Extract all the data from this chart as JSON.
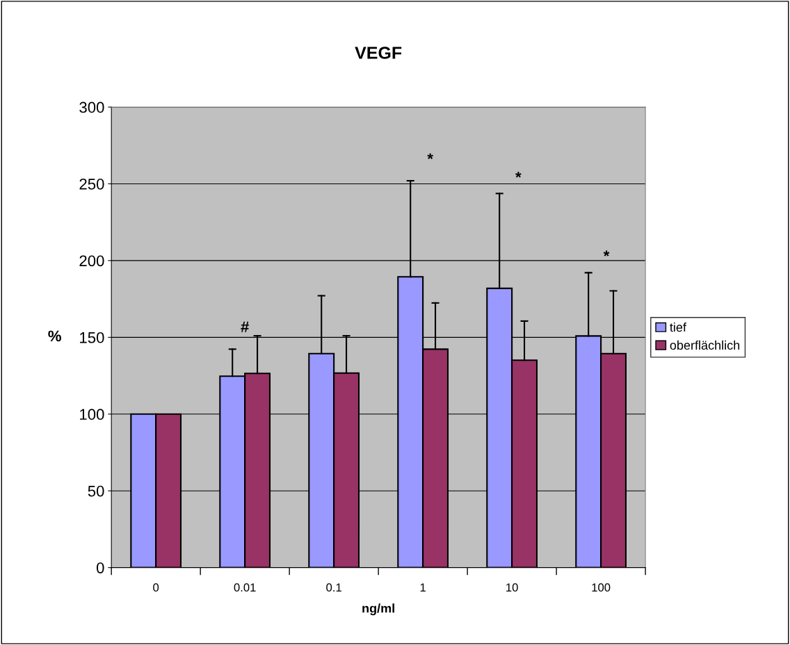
{
  "chart_data": {
    "type": "bar",
    "title": "VEGF",
    "xlabel": "ng/ml",
    "ylabel": "%",
    "categories": [
      "0",
      "0.01",
      "0.1",
      "1",
      "10",
      "100"
    ],
    "series": [
      {
        "name": "tief",
        "color": "#9999ff",
        "values": [
          100,
          124.7,
          139.4,
          189.4,
          181.9,
          150.9
        ],
        "errors": [
          null,
          [
            124.7,
            142.3
          ],
          [
            139.4,
            177.1
          ],
          [
            189.4,
            252.0
          ],
          [
            181.9,
            243.7
          ],
          [
            150.9,
            192.1
          ]
        ]
      },
      {
        "name": "oberflächlich",
        "color": "#993366",
        "values": [
          100,
          126.5,
          126.7,
          142.3,
          135.1,
          139.4
        ],
        "errors": [
          null,
          [
            126.5,
            151.0
          ],
          [
            126.7,
            151.0
          ],
          [
            142.3,
            172.4
          ],
          [
            135.1,
            160.6
          ],
          [
            139.4,
            180.3
          ]
        ]
      }
    ],
    "ylim": [
      0,
      300
    ],
    "yticks": [
      0,
      50,
      100,
      150,
      200,
      250,
      300
    ],
    "grid": "y",
    "legend": "right",
    "annotations": [
      "#",
      "*",
      "*",
      "*"
    ]
  }
}
